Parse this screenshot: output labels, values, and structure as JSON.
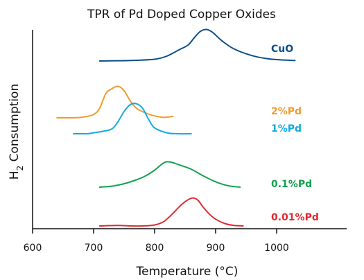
{
  "chart_data": {
    "type": "line",
    "title": "TPR of Pd Doped Copper Oxides",
    "xlabel": "Temperature (°C)",
    "ylabel": "H2 Consumption",
    "xlim": [
      600,
      1100
    ],
    "x_ticks": [
      600,
      700,
      800,
      900,
      1000
    ],
    "grid": false,
    "legend": "labels at right of each curve",
    "series": [
      {
        "name": "CuO",
        "color": "#0a4f8a",
        "x": [
          710,
          740,
          770,
          800,
          820,
          840,
          855,
          865,
          875,
          885,
          895,
          910,
          930,
          960,
          990,
          1030
        ],
        "y": [
          0.0,
          0.05,
          0.15,
          0.35,
          1.0,
          2.3,
          3.3,
          4.8,
          6.1,
          6.5,
          5.9,
          4.2,
          2.5,
          1.1,
          0.4,
          0.1
        ]
      },
      {
        "name": "2%Pd",
        "color": "#f39a2b",
        "x": [
          640,
          660,
          680,
          700,
          710,
          720,
          730,
          740,
          750,
          760,
          770,
          785,
          800,
          815,
          830
        ],
        "y": [
          0.0,
          0.0,
          0.1,
          0.7,
          2.0,
          5.0,
          6.0,
          6.5,
          5.6,
          3.5,
          2.0,
          1.0,
          0.4,
          0.1,
          0.3
        ]
      },
      {
        "name": "1%Pd",
        "color": "#12a9e0",
        "x": [
          667,
          680,
          690,
          700,
          715,
          730,
          740,
          750,
          760,
          770,
          780,
          790,
          800,
          820,
          840,
          860
        ],
        "y": [
          0.0,
          0.0,
          0.0,
          0.2,
          0.5,
          1.0,
          2.5,
          4.6,
          6.0,
          6.2,
          5.3,
          3.0,
          1.2,
          0.2,
          0.0,
          0.0
        ]
      },
      {
        "name": "0.1%Pd",
        "color": "#12a34e",
        "x": [
          710,
          730,
          750,
          770,
          785,
          800,
          815,
          825,
          840,
          860,
          880,
          900,
          920,
          940
        ],
        "y": [
          0.0,
          0.2,
          0.7,
          1.5,
          2.3,
          3.5,
          5.0,
          5.2,
          4.6,
          3.7,
          2.3,
          1.1,
          0.3,
          0.0
        ]
      },
      {
        "name": "0.01%Pd",
        "color": "#e02a30",
        "x": [
          710,
          740,
          760,
          780,
          800,
          815,
          830,
          845,
          860,
          870,
          880,
          890,
          900,
          915,
          930,
          945
        ],
        "y": [
          0.0,
          0.1,
          0.0,
          0.0,
          0.2,
          0.9,
          2.6,
          4.5,
          5.7,
          5.4,
          3.8,
          2.4,
          1.4,
          0.5,
          0.1,
          0.0
        ]
      }
    ]
  }
}
